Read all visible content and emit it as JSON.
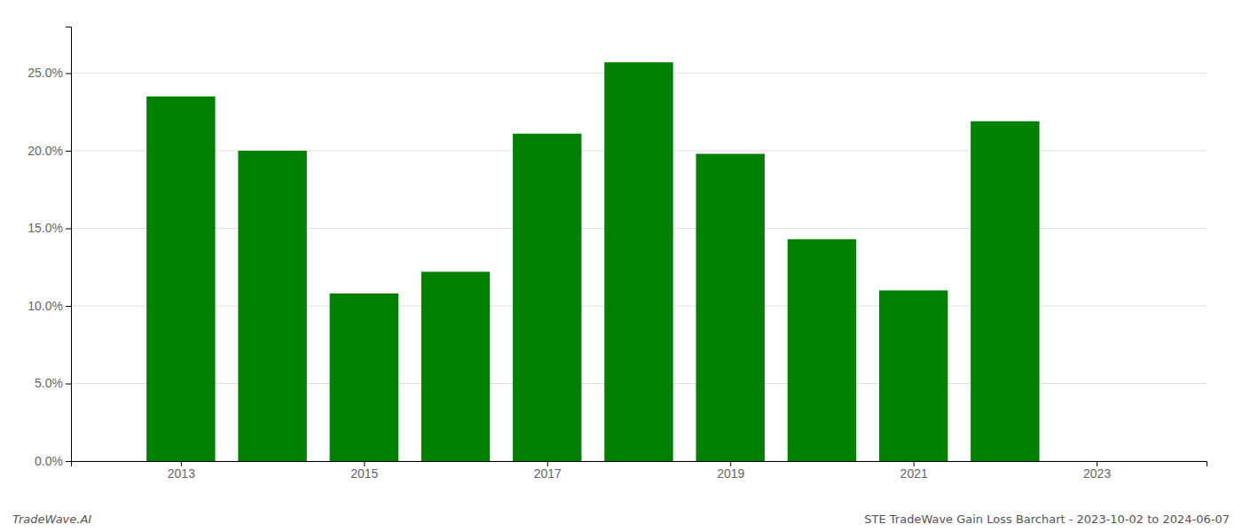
{
  "chart_data": {
    "type": "bar",
    "x": [
      2013,
      2014,
      2015,
      2016,
      2017,
      2018,
      2019,
      2020,
      2021,
      2022
    ],
    "values": [
      0.235,
      0.2,
      0.108,
      0.122,
      0.211,
      0.257,
      0.198,
      0.143,
      0.11,
      0.219
    ],
    "color": "#008000",
    "xlim": [
      2011.8,
      2024.2
    ],
    "xticks": [
      2013,
      2015,
      2017,
      2019,
      2021,
      2023
    ],
    "ylim": [
      0,
      0.28
    ],
    "yticks": [
      {
        "value": 0.0,
        "label": "0.0%"
      },
      {
        "value": 0.05,
        "label": "5.0%"
      },
      {
        "value": 0.1,
        "label": "10.0%"
      },
      {
        "value": 0.15,
        "label": "15.0%"
      },
      {
        "value": 0.2,
        "label": "20.0%"
      },
      {
        "value": 0.25,
        "label": "25.0%"
      }
    ],
    "grid": true,
    "annotations": [
      "TradeWave.AI",
      "STE TradeWave Gain Loss Barchart - 2023-10-02 to 2024-06-07"
    ]
  }
}
